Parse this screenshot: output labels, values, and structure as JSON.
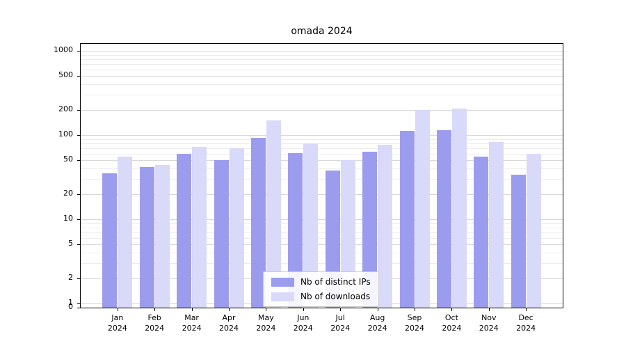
{
  "chart_data": {
    "type": "bar",
    "title": "omada 2024",
    "yscale": "symlog",
    "grid": true,
    "legend_position": "lower center",
    "xlabel": "",
    "ylabel": "",
    "categories": [
      "Jan 2024",
      "Feb 2024",
      "Mar 2024",
      "Apr 2024",
      "May 2024",
      "Jun 2024",
      "Jul 2024",
      "Aug 2024",
      "Sep 2024",
      "Oct 2024",
      "Nov 2024",
      "Dec 2024"
    ],
    "series": [
      {
        "name": "Nb of distinct IPs",
        "color": "#9c9cef",
        "values": [
          35,
          42,
          60,
          50,
          92,
          61,
          38,
          64,
          112,
          115,
          55,
          34
        ]
      },
      {
        "name": "Nb of downloads",
        "color": "#d9d9f9",
        "values": [
          55,
          44,
          72,
          70,
          150,
          80,
          50,
          76,
          200,
          205,
          82,
          60
        ]
      }
    ],
    "y_ticks": [
      1000,
      500,
      200,
      100,
      50,
      20,
      10,
      5,
      2,
      1,
      0
    ],
    "ylim": [
      0,
      1200
    ]
  }
}
